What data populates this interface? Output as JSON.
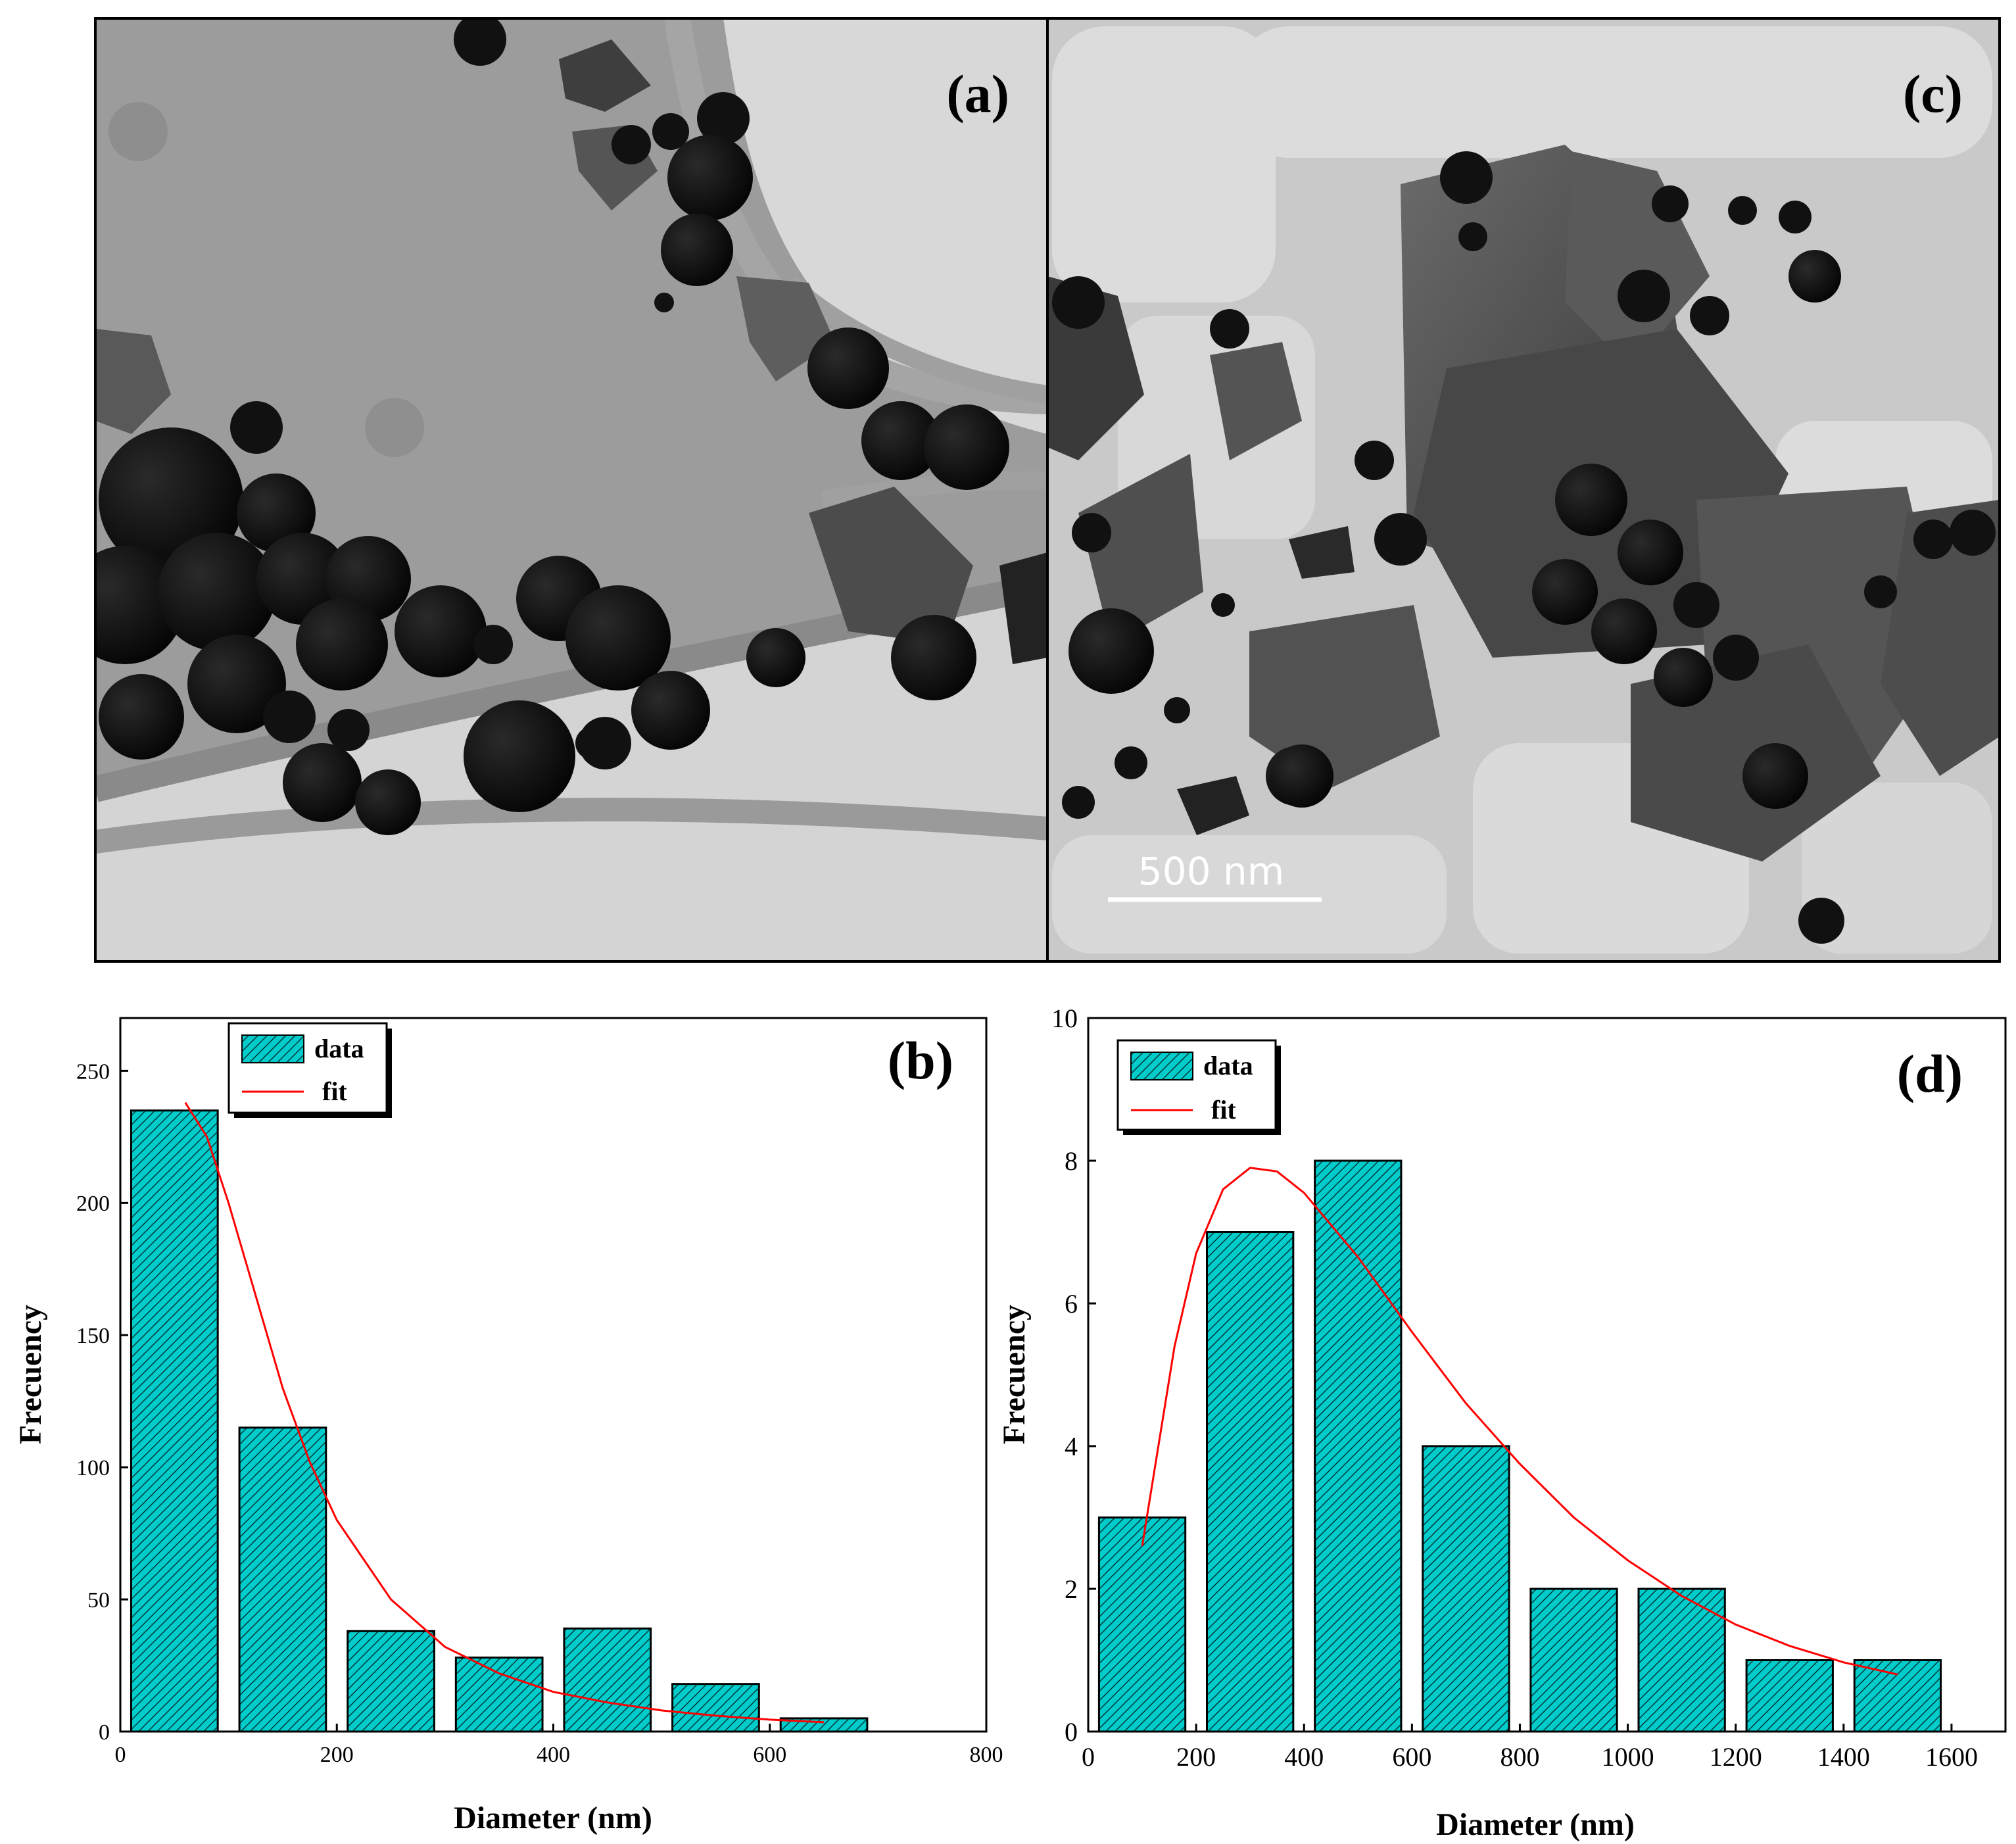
{
  "colors": {
    "bar_fill": "#00cccc",
    "bar_hatch": "#003838",
    "fit_line": "#ff0000",
    "axis": "#000000",
    "micrograph_dark": "#111111",
    "micrograph_background": "#bdbdbd"
  },
  "panels": {
    "a": {
      "label": "(a)"
    },
    "c": {
      "label": "(c)",
      "scale_bar": "500 nm"
    }
  },
  "chart_data": [
    {
      "panel": "(b)",
      "type": "bar",
      "xlabel": "Diameter (nm)",
      "ylabel": "Frecuency",
      "xlim": [
        0,
        800
      ],
      "ylim": [
        0,
        270
      ],
      "xticks": [
        0,
        200,
        400,
        600,
        800
      ],
      "yticks": [
        0,
        50,
        100,
        150,
        200,
        250
      ],
      "bin_width": 80,
      "bins": [
        {
          "x": 50,
          "value": 235
        },
        {
          "x": 150,
          "value": 115
        },
        {
          "x": 250,
          "value": 38
        },
        {
          "x": 350,
          "value": 28
        },
        {
          "x": 450,
          "value": 39
        },
        {
          "x": 550,
          "value": 18
        },
        {
          "x": 650,
          "value": 5
        }
      ],
      "fit": {
        "x": [
          60,
          80,
          100,
          125,
          150,
          175,
          200,
          250,
          300,
          350,
          400,
          450,
          500,
          550,
          600,
          650
        ],
        "y": [
          238,
          225,
          200,
          165,
          130,
          102,
          80,
          50,
          32,
          22,
          15,
          11,
          8,
          6,
          4.5,
          3.5
        ]
      },
      "legend": {
        "position": "top-left",
        "entries": [
          "data",
          "fit"
        ]
      },
      "grid": false
    },
    {
      "panel": "(d)",
      "type": "bar",
      "xlabel": "Diameter (nm)",
      "ylabel": "Frecuency",
      "xlim": [
        0,
        1700
      ],
      "ylim": [
        0,
        10
      ],
      "xticks": [
        0,
        200,
        400,
        600,
        800,
        1000,
        1200,
        1400,
        1600
      ],
      "yticks": [
        0,
        2,
        4,
        6,
        8,
        10
      ],
      "bin_width": 160,
      "bins": [
        {
          "x": 100,
          "value": 3
        },
        {
          "x": 300,
          "value": 7
        },
        {
          "x": 500,
          "value": 8
        },
        {
          "x": 700,
          "value": 4
        },
        {
          "x": 900,
          "value": 2
        },
        {
          "x": 1100,
          "value": 2
        },
        {
          "x": 1300,
          "value": 1
        },
        {
          "x": 1500,
          "value": 1
        }
      ],
      "fit": {
        "x": [
          100,
          130,
          160,
          200,
          250,
          300,
          350,
          400,
          450,
          500,
          600,
          700,
          800,
          900,
          1000,
          1100,
          1200,
          1300,
          1400,
          1500
        ],
        "y": [
          2.6,
          4.0,
          5.4,
          6.7,
          7.6,
          7.9,
          7.85,
          7.55,
          7.1,
          6.65,
          5.6,
          4.6,
          3.75,
          3.0,
          2.4,
          1.9,
          1.5,
          1.2,
          0.97,
          0.8
        ]
      },
      "legend": {
        "position": "top-left",
        "entries": [
          "data",
          "fit"
        ]
      },
      "grid": false
    }
  ]
}
